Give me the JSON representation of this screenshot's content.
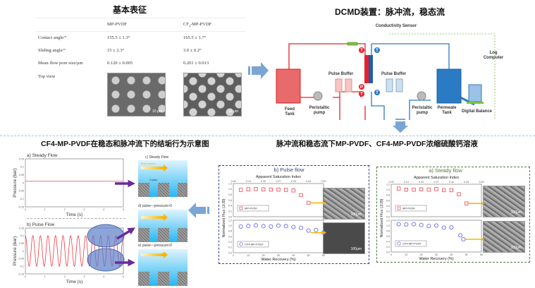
{
  "characterization": {
    "title": "基本表征",
    "columns": [
      "",
      "MP-PVDF",
      "CF4-MP-PVDF"
    ],
    "rows": [
      {
        "label": "Contact angle/°",
        "mp": "155.5 ± 1.3°",
        "cf4": "165.5 ± 1.7°"
      },
      {
        "label": "Sliding angle/°",
        "mp": "15 ± 2.3°",
        "cf4": "3.0 ± 0.2°"
      },
      {
        "label": "Mean flow pore size/μm",
        "mp": "0.120 ± 0.005",
        "cf4": "0.201 ± 0.013"
      },
      {
        "label": "Top view",
        "mp": "",
        "cf4": ""
      }
    ],
    "scale_bar": "10 μm"
  },
  "dcmd": {
    "title": "DCMD装置：脉冲流，稳态流",
    "labels": {
      "conductivity": "Conductivity Sensor",
      "log_computer": "Log Computer",
      "pulse_buffer_feed": "Pulse Buffer",
      "pulse_buffer_perm": "Pulse Buffer",
      "feed_tank": "Feed Tank",
      "peristaltic_feed": "Peristaltic pump",
      "peristaltic_perm": "Peristaltic pump",
      "permeate_tank": "Permeate Tank",
      "digital_balance": "Digital Balance",
      "t": "T",
      "p": "P"
    },
    "colors": {
      "hot": "#e8202a",
      "cold": "#2b7bc4",
      "signal": "#7ac143"
    }
  },
  "fouling": {
    "title": "CF4-MP-PVDF在稳态和脉冲流下的结垢行为示意图",
    "schematics": {
      "c": "c)  Steady Flow",
      "feed_solution": "Feed solution",
      "crystal": "Crystal",
      "d": "d) pulse—pressure>0",
      "e": "e)  pulse—pressure<0"
    }
  },
  "flux_title": "脉冲流和稳态流下MP-PVDF、CF4-MP-PVDF浓缩硫酸钙溶液",
  "chart_data": [
    {
      "id": "steady-pressure",
      "type": "line",
      "title": "a)  Steady Flow",
      "xlabel": "Time (s)",
      "ylabel": "Pressure (bar)",
      "xlim": [
        0,
        5
      ],
      "ylim": [
        -0.15,
        0.15
      ],
      "xticks": [
        "0",
        "1",
        "2",
        "3",
        "4",
        "5"
      ],
      "yticks": [
        "0.15",
        "0.1",
        "0.05",
        "0",
        "-0.05",
        "-0.1",
        "-0.15"
      ],
      "series": [
        {
          "kind": "constant",
          "value": 0.01,
          "color": "#f29a9a"
        }
      ]
    },
    {
      "id": "pulse-pressure",
      "type": "line",
      "title": "b) Pulse Flow",
      "xlabel": "Time (s)",
      "ylabel": "Pressure (bar)",
      "xlim": [
        0,
        5
      ],
      "ylim": [
        -0.15,
        0.15
      ],
      "xticks": [
        "0",
        "1",
        "2",
        "3",
        "4",
        "5"
      ],
      "yticks": [
        "0.15",
        "0.1",
        "0.05",
        "0",
        "-0.05",
        "-0.1",
        "-0.15"
      ],
      "series": [
        {
          "kind": "sine",
          "amplitude": 0.1,
          "frequency_hz": 2.6,
          "color": "#e8202a"
        }
      ]
    },
    {
      "id": "pulse-flux",
      "type": "scatter",
      "title": "b) Pulse flow",
      "color": "#2e3f7f",
      "top_axis_label": "Apparent Saturation Index",
      "top_ticks": [
        "0.09",
        "0.14",
        "0.20",
        "0.27",
        "0.34",
        "0.43",
        "0.53"
      ],
      "xlabel": "Water Recovery (%)",
      "ylabel": "Normalized Flux (J/J0)",
      "xlim": [
        0,
        60
      ],
      "ylim": [
        0,
        1.2
      ],
      "xticks": [
        "0",
        "10",
        "20",
        "30",
        "40",
        "50",
        "60"
      ],
      "yticks": [
        "0.0",
        "0.2",
        "0.4",
        "0.6",
        "0.8",
        "1.0",
        "1.2"
      ],
      "series": [
        {
          "name": "MP-PVDF",
          "marker": "square",
          "color": "#e8474f",
          "x": [
            5,
            10,
            15,
            20,
            25,
            30,
            35,
            40,
            45,
            50
          ],
          "y": [
            0.97,
            0.99,
            1.0,
            0.99,
            0.98,
            0.98,
            0.97,
            0.95,
            0.78,
            0.5
          ]
        },
        {
          "name": "CF4-MP-PVDF",
          "marker": "circle",
          "color": "#5b5bf0",
          "x": [
            5,
            10,
            15,
            20,
            25,
            30,
            35,
            40,
            45,
            50,
            55,
            60
          ],
          "y": [
            0.97,
            0.99,
            1.01,
            0.98,
            0.97,
            1.0,
            0.98,
            0.95,
            0.92,
            0.82,
            0.84,
            0.74
          ]
        }
      ],
      "scale_bar": "100μm"
    },
    {
      "id": "steady-flux",
      "type": "scatter",
      "title": "a) Steady flow",
      "color": "#4e7a3a",
      "top_axis_label": "Apparent Saturation Index",
      "top_ticks": [
        "0.09",
        "0.14",
        "0.20",
        "0.27",
        "0.34",
        "0.43",
        "0.53"
      ],
      "xlabel": "Water Recovery (%)",
      "ylabel": "Normalized Flux (J/J0)",
      "xlim": [
        0,
        60
      ],
      "ylim": [
        0,
        1.2
      ],
      "xticks": [
        "0",
        "10",
        "20",
        "30",
        "40",
        "50",
        "60"
      ],
      "yticks": [
        "0.0",
        "0.2",
        "0.4",
        "0.6",
        "0.8",
        "1.0",
        "1.2"
      ],
      "series": [
        {
          "name": "MP-PVDF",
          "marker": "square",
          "color": "#e8474f",
          "x": [
            5,
            10,
            15,
            20,
            25,
            30,
            35,
            40,
            45,
            50
          ],
          "y": [
            1.04,
            1.0,
            1.0,
            1.01,
            1.0,
            1.02,
            0.98,
            0.98,
            0.83,
            0.49
          ]
        },
        {
          "name": "CF4-MP-PVDF",
          "marker": "circle",
          "color": "#5b5bf0",
          "x": [
            5,
            10,
            15,
            20,
            25,
            30,
            35,
            40,
            46,
            48
          ],
          "y": [
            1.05,
            1.04,
            1.05,
            1.02,
            0.98,
            1.0,
            0.92,
            0.93,
            0.63,
            0.48
          ]
        }
      ],
      "scale_bar": "100μm"
    }
  ]
}
